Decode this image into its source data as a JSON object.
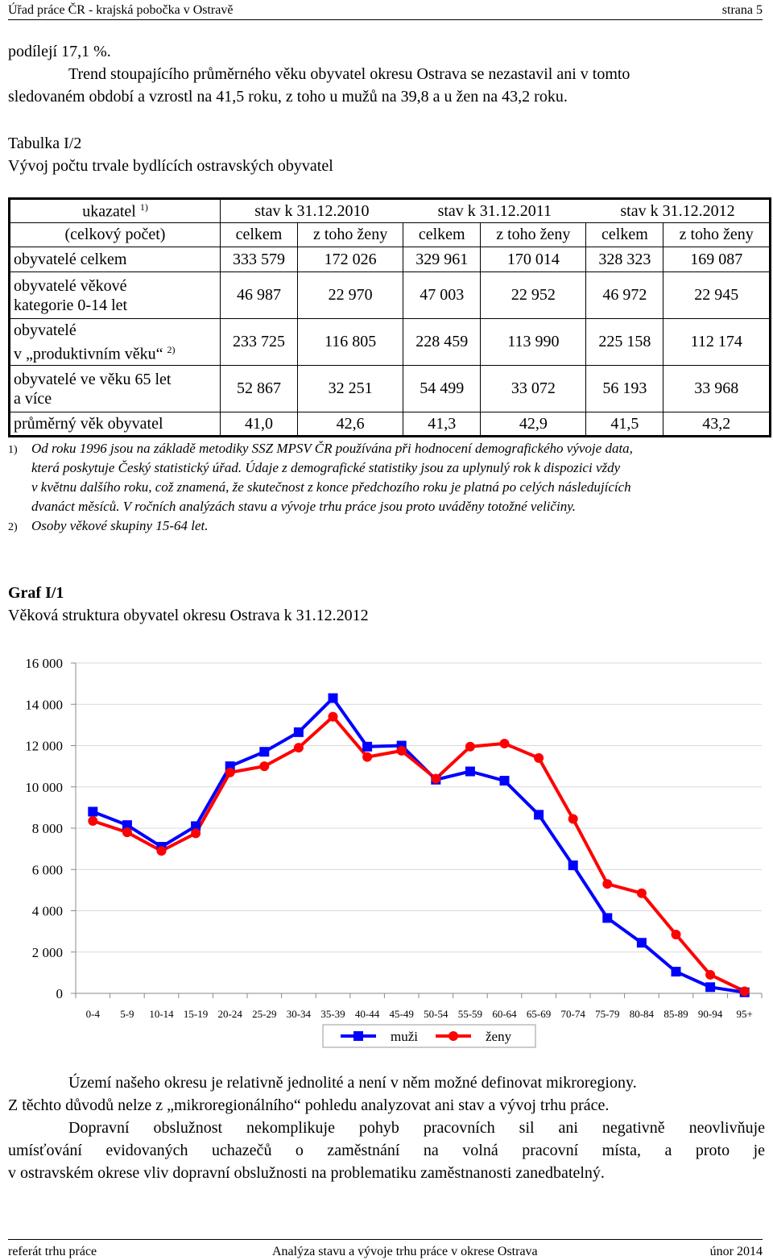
{
  "header": {
    "left": "Úřad práce ČR - krajská pobočka v Ostravě",
    "right": "strana 5"
  },
  "para1": {
    "line1": "podílejí 17,1 %.",
    "line2": "Trend stoupajícího průměrného věku obyvatel okresu Ostrava se nezastavil ani v tomto",
    "line3": "sledovaném období a vzrostl na 41,5 roku, z toho u mužů na 39,8 a u žen na 43,2 roku."
  },
  "table": {
    "caption_title": "Tabulka I/2",
    "caption_sub": "Vývoj počtu trvale bydlících ostravských obyvatel",
    "head": {
      "col0a": "ukazatel ",
      "col0a_sup": "1)",
      "col0b": "(celkový počet)",
      "periods": [
        "stav k 31.12.2010",
        "stav k 31.12.2011",
        "stav k 31.12.2012"
      ],
      "sub": [
        "celkem",
        "z toho ženy",
        "celkem",
        "z toho ženy",
        "celkem",
        "z toho ženy"
      ]
    },
    "rows": [
      {
        "label": "obyvatelé celkem",
        "values": [
          "333 579",
          "172 026",
          "329 961",
          "170 014",
          "328 323",
          "169 087"
        ]
      },
      {
        "label_l1": "obyvatelé věkové",
        "label_l2": "kategorie 0-14 let",
        "values": [
          "46 987",
          "22 970",
          "47 003",
          "22 952",
          "46 972",
          "22 945"
        ]
      },
      {
        "label_l1": "obyvatelé",
        "label_l2": "v „produktivním věku“ ",
        "sup": "2)",
        "values": [
          "233 725",
          "116 805",
          "228 459",
          "113 990",
          "225 158",
          "112 174"
        ]
      },
      {
        "label_l1": "obyvatelé ve věku 65 let",
        "label_l2": "a více",
        "values": [
          "52 867",
          "32 251",
          "54 499",
          "33 072",
          "56 193",
          "33 968"
        ]
      },
      {
        "label": "průměrný věk obyvatel",
        "values": [
          "41,0",
          "42,6",
          "41,3",
          "42,9",
          "41,5",
          "43,2"
        ]
      }
    ]
  },
  "footnotes": [
    {
      "num": "1)",
      "lines": [
        "Od roku 1996 jsou na základě metodiky SSZ MPSV ČR používána při hodnocení demografického vývoje data,",
        "která poskytuje Český statistický úřad. Údaje z demografické statistiky jsou za uplynulý rok k dispozici vždy",
        "v květnu dalšího roku, což znamená, že skutečnost z konce předchozího roku je platná po celých následujících",
        "dvanáct měsíců. V ročních analýzách stavu a vývoje trhu práce jsou proto uváděny totožné veličiny."
      ]
    },
    {
      "num": "2)",
      "lines": [
        "Osoby věkové skupiny 15-64 let."
      ]
    }
  ],
  "graph": {
    "title": "Graf I/1",
    "subtitle": "Věková struktura obyvatel okresu Ostrava k 31.12.2012"
  },
  "chart_data": {
    "type": "line",
    "title": "Věková struktura obyvatel okresu Ostrava k 31.12.2012",
    "categories": [
      "0-4",
      "5-9",
      "10-14",
      "15-19",
      "20-24",
      "25-29",
      "30-34",
      "35-39",
      "40-44",
      "45-49",
      "50-54",
      "55-59",
      "60-64",
      "65-69",
      "70-74",
      "75-79",
      "80-84",
      "85-89",
      "90-94",
      "95+"
    ],
    "ylim": [
      0,
      16000
    ],
    "yticks": [
      0,
      2000,
      4000,
      6000,
      8000,
      10000,
      12000,
      14000,
      16000
    ],
    "ytick_labels": [
      "0",
      "2 000",
      "4 000",
      "6 000",
      "8 000",
      "10 000",
      "12 000",
      "14 000",
      "16 000"
    ],
    "series": [
      {
        "name": "muži",
        "color": "#0000ff",
        "marker": "square",
        "values": [
          8800,
          8150,
          7100,
          8100,
          11000,
          11700,
          12650,
          14300,
          11950,
          12000,
          10350,
          10750,
          10300,
          8650,
          6200,
          3650,
          2450,
          1050,
          300,
          50
        ]
      },
      {
        "name": "ženy",
        "color": "#ff0000",
        "marker": "circle",
        "values": [
          8350,
          7800,
          6900,
          7750,
          10700,
          11000,
          11900,
          13400,
          11450,
          11750,
          10400,
          11950,
          12100,
          11400,
          8450,
          5300,
          4850,
          2850,
          900,
          100
        ]
      }
    ],
    "legend": "bottom"
  },
  "para2": {
    "line1": "Území našeho okresu je relativně jednolité a není v něm možné definovat mikroregiony.",
    "line2": "Z těchto důvodů nelze z „mikroregionálního“ pohledu analyzovat ani stav a vývoj trhu práce.",
    "line3": "Dopravní obslužnost nekomplikuje pohyb pracovních sil ani negativně neovlivňuje",
    "line4": "umísťování evidovaných uchazečů o zaměstnání na volná pracovní místa, a proto je",
    "line5": "v ostravském okrese vliv dopravní obslužnosti na problematiku zaměstnanosti zanedbatelný."
  },
  "footer": {
    "left": "referát trhu práce",
    "center": "Analýza stavu a vývoje trhu práce v okrese Ostrava",
    "right": "únor 2014"
  }
}
